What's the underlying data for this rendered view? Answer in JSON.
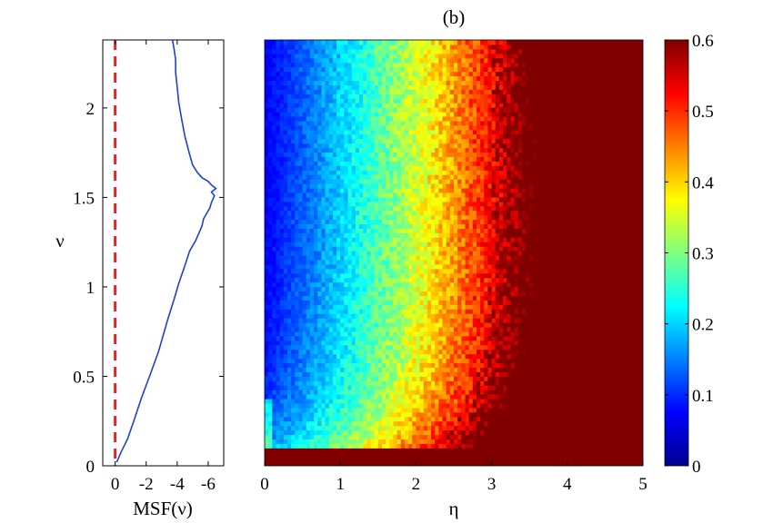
{
  "figure": {
    "title": "(b)"
  },
  "chart_data": [
    {
      "type": "line",
      "title": "",
      "xlabel": "MSF(ν)",
      "ylabel": "ν",
      "xlim": [
        0.8,
        -7.0
      ],
      "ylim": [
        0,
        2.38
      ],
      "xticks": [
        0,
        -2,
        -4,
        -6
      ],
      "xtick_labels": [
        "0",
        "-2",
        "-4",
        "-6"
      ],
      "yticks": [
        0,
        0.5,
        1,
        1.5,
        2
      ],
      "ytick_labels": [
        "0",
        "0.5",
        "1",
        "1.5",
        "2"
      ],
      "grid": false,
      "reference_line": {
        "x": 0,
        "style": "dashed",
        "color": "#e8231f"
      },
      "series": [
        {
          "color": "#1f3fd8",
          "x": [
            -0.1,
            -0.4,
            -0.8,
            -1.2,
            -1.7,
            -2.3,
            -2.8,
            -3.1,
            -3.4,
            -3.8,
            -4.1,
            -4.5,
            -4.8,
            -5.2,
            -5.4,
            -5.6,
            -5.7,
            -5.9,
            -6.1,
            -6.2,
            -6.3,
            -6.4,
            -6.2,
            -6.5,
            -6.2,
            -6.0,
            -5.6,
            -5.3,
            -5.0,
            -4.8,
            -4.5,
            -4.3,
            -4.1,
            -4.0,
            -3.9,
            -3.9,
            -3.8,
            -3.7
          ],
          "y": [
            0.02,
            0.08,
            0.15,
            0.25,
            0.38,
            0.52,
            0.64,
            0.73,
            0.82,
            0.93,
            1.02,
            1.12,
            1.2,
            1.26,
            1.3,
            1.34,
            1.38,
            1.41,
            1.44,
            1.47,
            1.49,
            1.51,
            1.53,
            1.55,
            1.57,
            1.59,
            1.61,
            1.64,
            1.68,
            1.74,
            1.84,
            1.93,
            2.03,
            2.12,
            2.2,
            2.27,
            2.33,
            2.38
          ]
        }
      ]
    },
    {
      "type": "heatmap",
      "title": "",
      "xlabel": "η",
      "ylabel": "",
      "xlim": [
        0,
        5
      ],
      "ylim": [
        0,
        2.38
      ],
      "xticks": [
        0,
        1,
        2,
        3,
        4,
        5
      ],
      "xtick_labels": [
        "0",
        "1",
        "2",
        "3",
        "4",
        "5"
      ],
      "colormap": "jet",
      "colorbar": {
        "range": [
          0,
          0.6
        ],
        "ticks": [
          0,
          0.1,
          0.2,
          0.3,
          0.4,
          0.5,
          0.6
        ],
        "tick_labels": [
          "0",
          "0.1",
          "0.2",
          "0.3",
          "0.4",
          "0.5",
          "0.6"
        ],
        "placement": "right"
      },
      "saturated_region": "ν < 0.1 and η > 4.1 at 0.6"
    }
  ]
}
